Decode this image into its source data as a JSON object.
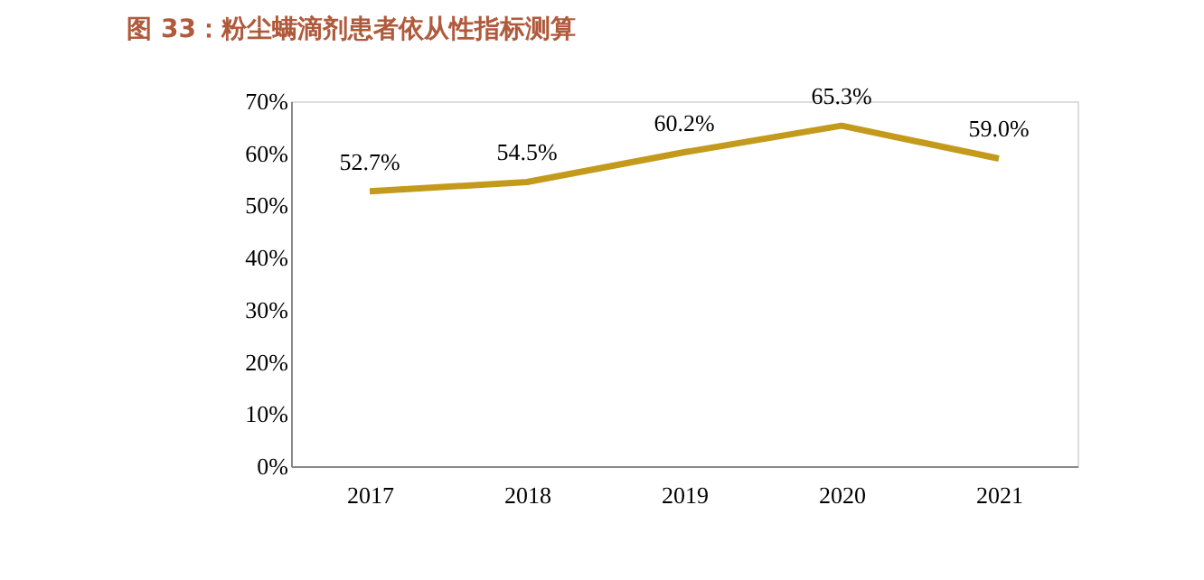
{
  "chart_data": {
    "type": "line",
    "title": "图 33：粉尘螨滴剂患者依从性指标测算",
    "categories": [
      "2017",
      "2018",
      "2019",
      "2020",
      "2021"
    ],
    "series": [
      {
        "color": "#c49a1c",
        "values": [
          52.7,
          54.5,
          60.2,
          65.3,
          59.0
        ]
      }
    ],
    "value_labels": [
      "52.7%",
      "54.5%",
      "60.2%",
      "65.3%",
      "59.0%"
    ],
    "ylim": [
      0,
      70
    ],
    "yticks": [
      {
        "value": 0,
        "label": "0%"
      },
      {
        "value": 10,
        "label": "10%"
      },
      {
        "value": 20,
        "label": "20%"
      },
      {
        "value": 30,
        "label": "30%"
      },
      {
        "value": 40,
        "label": "40%"
      },
      {
        "value": 50,
        "label": "50%"
      },
      {
        "value": 60,
        "label": "60%"
      },
      {
        "value": 70,
        "label": "70%"
      }
    ],
    "grid": false,
    "legend": false,
    "marker": "none",
    "line_style": "solid"
  }
}
